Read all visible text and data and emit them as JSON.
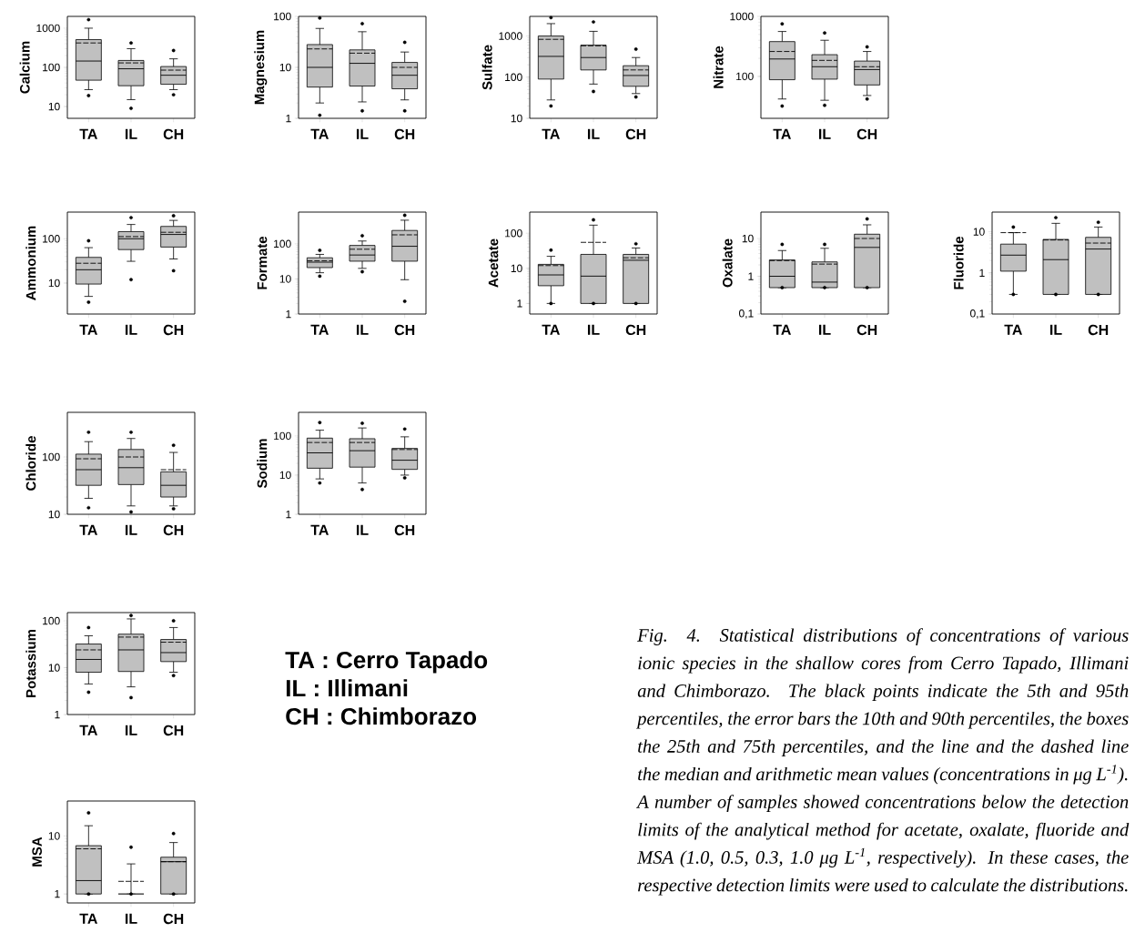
{
  "chart_data": [
    {
      "type": "box",
      "ylabel": "Calcium",
      "categories": [
        "TA",
        "IL",
        "CH"
      ],
      "log": true,
      "ylim": [
        5,
        2000
      ],
      "yticks": [
        10,
        100,
        1000
      ],
      "color": "#c0c0c0",
      "boxes": [
        {
          "low": 27,
          "q1": 47,
          "median": 145,
          "q3": 510,
          "high": 1000,
          "mean": 420,
          "outliers": [
            19,
            1650
          ]
        },
        {
          "low": 15,
          "q1": 34,
          "median": 92,
          "q3": 150,
          "high": 300,
          "mean": 130,
          "outliers": [
            9,
            420
          ]
        },
        {
          "low": 27,
          "q1": 37,
          "median": 63,
          "q3": 105,
          "high": 165,
          "mean": 85,
          "outliers": [
            20,
            270
          ]
        }
      ]
    },
    {
      "type": "box",
      "ylabel": "Magnesium",
      "categories": [
        "TA",
        "IL",
        "CH"
      ],
      "log": true,
      "ylim": [
        1,
        100
      ],
      "yticks": [
        1,
        10,
        100
      ],
      "color": "#c0c0c0",
      "boxes": [
        {
          "low": 2,
          "q1": 4.1,
          "median": 10,
          "q3": 28,
          "high": 58,
          "mean": 23,
          "outliers": [
            1.15,
            93
          ]
        },
        {
          "low": 2.1,
          "q1": 4.3,
          "median": 12,
          "q3": 22,
          "high": 50,
          "mean": 19,
          "outliers": [
            1.4,
            72
          ]
        },
        {
          "low": 2.3,
          "q1": 3.8,
          "median": 7,
          "q3": 12.5,
          "high": 20,
          "mean": 10,
          "outliers": [
            1.4,
            31
          ]
        }
      ]
    },
    {
      "type": "box",
      "ylabel": "Sulfate",
      "categories": [
        "TA",
        "IL",
        "CH"
      ],
      "log": true,
      "ylim": [
        10,
        3000
      ],
      "yticks": [
        10,
        100,
        1000
      ],
      "color": "#c0c0c0",
      "boxes": [
        {
          "low": 28,
          "q1": 90,
          "median": 320,
          "q3": 1000,
          "high": 2000,
          "mean": 830,
          "outliers": [
            20,
            2800
          ]
        },
        {
          "low": 68,
          "q1": 150,
          "median": 300,
          "q3": 600,
          "high": 1300,
          "mean": 580,
          "outliers": [
            45,
            2200
          ]
        },
        {
          "low": 40,
          "q1": 60,
          "median": 110,
          "q3": 190,
          "high": 300,
          "mean": 150,
          "outliers": [
            33,
            480
          ]
        }
      ]
    },
    {
      "type": "box",
      "ylabel": "Nitrate",
      "categories": [
        "TA",
        "IL",
        "CH"
      ],
      "log": true,
      "ylim": [
        20,
        1000
      ],
      "yticks": [
        100,
        1000
      ],
      "color": "#c0c0c0",
      "boxes": [
        {
          "low": 42,
          "q1": 88,
          "median": 195,
          "q3": 380,
          "high": 560,
          "mean": 260,
          "outliers": [
            32,
            750
          ]
        },
        {
          "low": 40,
          "q1": 90,
          "median": 145,
          "q3": 230,
          "high": 400,
          "mean": 185,
          "outliers": [
            33,
            530
          ]
        },
        {
          "low": 48,
          "q1": 72,
          "median": 130,
          "q3": 180,
          "high": 260,
          "mean": 145,
          "outliers": [
            42,
            310
          ]
        }
      ]
    },
    {
      "type": "box",
      "ylabel": "Ammonium",
      "categories": [
        "TA",
        "IL",
        "CH"
      ],
      "log": true,
      "ylim": [
        2,
        400
      ],
      "yticks": [
        10,
        100
      ],
      "color": "#c0c0c0",
      "boxes": [
        {
          "low": 5,
          "q1": 9.5,
          "median": 20,
          "q3": 38,
          "high": 63,
          "mean": 28,
          "outliers": [
            3.7,
            90
          ]
        },
        {
          "low": 31,
          "q1": 57,
          "median": 100,
          "q3": 145,
          "high": 210,
          "mean": 112,
          "outliers": [
            12,
            300
          ]
        },
        {
          "low": 35,
          "q1": 65,
          "median": 125,
          "q3": 190,
          "high": 260,
          "mean": 140,
          "outliers": [
            19,
            330
          ]
        }
      ]
    },
    {
      "type": "box",
      "ylabel": "Formate",
      "categories": [
        "TA",
        "IL",
        "CH"
      ],
      "log": true,
      "ylim": [
        1,
        800
      ],
      "yticks": [
        1,
        10,
        100
      ],
      "color": "#c0c0c0",
      "boxes": [
        {
          "low": 15,
          "q1": 21,
          "median": 30,
          "q3": 40,
          "high": 50,
          "mean": 33,
          "outliers": [
            12,
            65
          ]
        },
        {
          "low": 20,
          "q1": 32,
          "median": 48,
          "q3": 90,
          "high": 120,
          "mean": 70,
          "outliers": [
            16,
            170
          ]
        },
        {
          "low": 9.5,
          "q1": 32,
          "median": 85,
          "q3": 240,
          "high": 470,
          "mean": 180,
          "outliers": [
            2.3,
            650
          ]
        }
      ]
    },
    {
      "type": "box",
      "ylabel": "Acetate",
      "categories": [
        "TA",
        "IL",
        "CH"
      ],
      "log": true,
      "ylim": [
        0.5,
        400
      ],
      "yticks": [
        1,
        10,
        100
      ],
      "color": "#c0c0c0",
      "boxes": [
        {
          "low": 1,
          "q1": 3.2,
          "median": 6.5,
          "q3": 13,
          "high": 22,
          "mean": 12,
          "outliers": [
            1,
            33
          ]
        },
        {
          "low": 1,
          "q1": 1,
          "median": 6,
          "q3": 25,
          "high": 170,
          "mean": 55,
          "outliers": [
            1,
            240
          ]
        },
        {
          "low": 1,
          "q1": 1,
          "median": 17,
          "q3": 25,
          "high": 38,
          "mean": 20,
          "outliers": [
            1,
            50
          ]
        }
      ]
    },
    {
      "type": "box",
      "ylabel": "Oxalate",
      "categories": [
        "TA",
        "IL",
        "CH"
      ],
      "log": true,
      "ylim": [
        0.1,
        50
      ],
      "yticks": [
        {
          "value": 0.1,
          "label": "0,1"
        },
        1,
        10
      ],
      "color": "#c0c0c0",
      "boxes": [
        {
          "low": 0.5,
          "q1": 0.5,
          "median": 1.0,
          "q3": 2.7,
          "high": 4.8,
          "mean": 2.6,
          "outliers": [
            0.5,
            7
          ]
        },
        {
          "low": 0.5,
          "q1": 0.5,
          "median": 0.7,
          "q3": 2.4,
          "high": 5.5,
          "mean": 2.1,
          "outliers": [
            0.5,
            7
          ]
        },
        {
          "low": 0.5,
          "q1": 0.5,
          "median": 5.8,
          "q3": 13,
          "high": 23,
          "mean": 10,
          "outliers": [
            0.5,
            33
          ]
        }
      ]
    },
    {
      "type": "box",
      "ylabel": "Fluoride",
      "categories": [
        "TA",
        "IL",
        "CH"
      ],
      "log": true,
      "ylim": [
        0.1,
        30
      ],
      "yticks": [
        {
          "value": 0.1,
          "label": "0,1"
        },
        1,
        10
      ],
      "color": "#c0c0c0",
      "boxes": [
        {
          "low": 0.3,
          "q1": 1.1,
          "median": 2.7,
          "q3": 5,
          "high": 9.5,
          "mean": 9.5,
          "outliers": [
            0.3,
            13
          ]
        },
        {
          "low": 0.3,
          "q1": 0.3,
          "median": 2.1,
          "q3": 6.5,
          "high": 16,
          "mean": 6.3,
          "outliers": [
            0.3,
            22
          ]
        },
        {
          "low": 0.3,
          "q1": 0.3,
          "median": 3.8,
          "q3": 7.3,
          "high": 13,
          "mean": 5.3,
          "outliers": [
            0.3,
            17
          ]
        }
      ]
    },
    {
      "type": "box",
      "ylabel": "Chloride",
      "categories": [
        "TA",
        "IL",
        "CH"
      ],
      "log": true,
      "ylim": [
        10,
        600
      ],
      "yticks": [
        10,
        100
      ],
      "color": "#c0c0c0",
      "boxes": [
        {
          "low": 19,
          "q1": 32,
          "median": 60,
          "q3": 112,
          "high": 185,
          "mean": 93,
          "outliers": [
            13,
            270
          ]
        },
        {
          "low": 14,
          "q1": 33,
          "median": 65,
          "q3": 135,
          "high": 210,
          "mean": 100,
          "outliers": [
            11,
            270
          ]
        },
        {
          "low": 14,
          "q1": 20,
          "median": 32,
          "q3": 55,
          "high": 120,
          "mean": 60,
          "outliers": [
            12.5,
            160
          ]
        }
      ]
    },
    {
      "type": "box",
      "ylabel": "Sodium",
      "categories": [
        "TA",
        "IL",
        "CH"
      ],
      "log": true,
      "ylim": [
        1,
        400
      ],
      "yticks": [
        1,
        10,
        100
      ],
      "color": "#c0c0c0",
      "boxes": [
        {
          "low": 8,
          "q1": 15,
          "median": 37,
          "q3": 88,
          "high": 140,
          "mean": 68,
          "outliers": [
            6.3,
            220
          ]
        },
        {
          "low": 6.3,
          "q1": 16,
          "median": 42,
          "q3": 85,
          "high": 160,
          "mean": 68,
          "outliers": [
            4.3,
            210
          ]
        },
        {
          "low": 10,
          "q1": 14,
          "median": 24,
          "q3": 48,
          "high": 95,
          "mean": 45,
          "outliers": [
            8.5,
            150
          ]
        }
      ]
    },
    {
      "type": "box",
      "ylabel": "Potassium",
      "categories": [
        "TA",
        "IL",
        "CH"
      ],
      "log": true,
      "ylim": [
        1,
        150
      ],
      "yticks": [
        1,
        10,
        100
      ],
      "color": "#c0c0c0",
      "boxes": [
        {
          "low": 4.5,
          "q1": 8,
          "median": 15,
          "q3": 32,
          "high": 48,
          "mean": 24,
          "outliers": [
            3,
            72
          ]
        },
        {
          "low": 3.9,
          "q1": 8.3,
          "median": 24,
          "q3": 52,
          "high": 110,
          "mean": 45,
          "outliers": [
            2.3,
            130
          ]
        },
        {
          "low": 8,
          "q1": 13.5,
          "median": 21,
          "q3": 40,
          "high": 72,
          "mean": 35,
          "outliers": [
            6.8,
            100
          ]
        }
      ]
    },
    {
      "type": "box",
      "ylabel": "MSA",
      "categories": [
        "TA",
        "IL",
        "CH"
      ],
      "log": true,
      "ylim": [
        0.7,
        40
      ],
      "yticks": [
        1,
        10
      ],
      "color": "#c0c0c0",
      "boxes": [
        {
          "low": 1,
          "q1": 1,
          "median": 1.7,
          "q3": 6.8,
          "high": 15,
          "mean": 6,
          "outliers": [
            1,
            25
          ]
        },
        {
          "low": 1,
          "q1": 1,
          "median": 1,
          "q3": 1,
          "high": 3.3,
          "mean": 1.65,
          "outliers": [
            1,
            6.4
          ]
        },
        {
          "low": 1,
          "q1": 1,
          "median": 3.6,
          "q3": 4.3,
          "high": 7.7,
          "mean": 3.6,
          "outliers": [
            1,
            11
          ]
        }
      ]
    },
    {
      "type": "other",
      "annotations": [
        "TA : Cerro Tapado",
        "IL : Illimani",
        "CH : Chimborazo",
        "Fig. 4. Statistical distributions of concentrations of various ionic species in the shallow cores from Cerro Tapado, Illimani and Chimborazo. The black points indicate the 5th and 95th percentiles, the error bars the 10th and 90th percentiles, the boxes the 25th and 75th percentiles, and the line and the dashed line the median and arithmetic mean values (concentrations in μg L$^{-1}$). A number of samples showed concentrations below the detection limits of the analytical method for acetate, oxalate, fluoride and MSA (1.0, 0.5, 0.3, 1.0 μg L$^{-1}$, respectively). In these cases, the respective detection limits were used to calculate the distributions."
      ]
    }
  ]
}
